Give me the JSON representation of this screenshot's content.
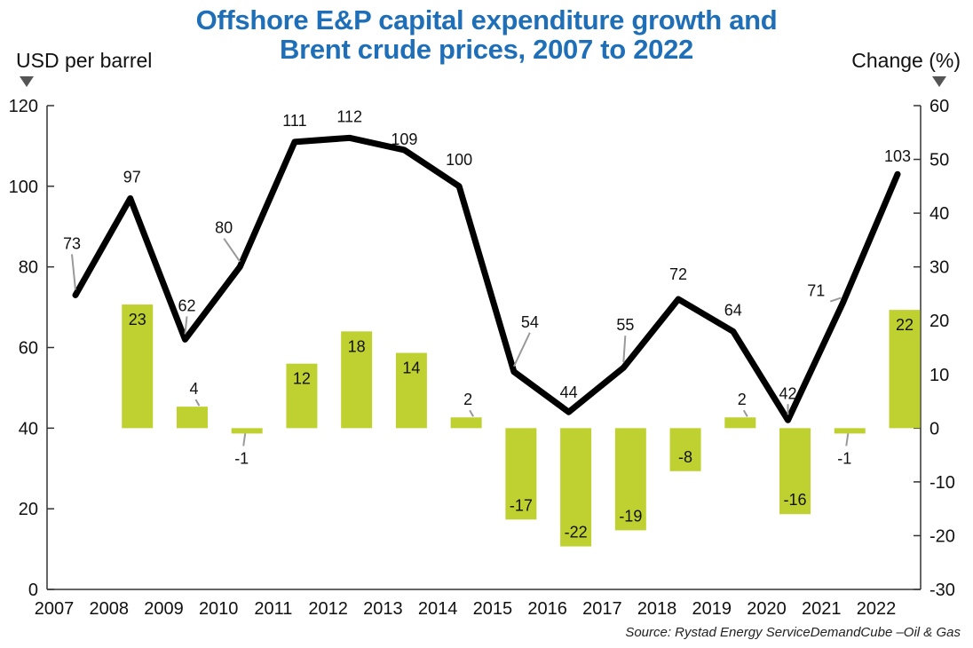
{
  "title_line1": "Offshore E&P capital expenditure growth and",
  "title_line2": "Brent crude prices, 2007 to 2022",
  "left_axis_title": "USD per barrel",
  "right_axis_title": "Change (%)",
  "source": "Source: Rystad Energy ServiceDemandCube –Oil & Gas",
  "colors": {
    "title": "#1f6fb8",
    "bar": "#bfd131",
    "line": "#000000",
    "axis": "#333333"
  },
  "chart_data": {
    "type": "bar+line",
    "categories": [
      "2007",
      "2008",
      "2009",
      "2010",
      "2011",
      "2012",
      "2013",
      "2014",
      "2015",
      "2016",
      "2017",
      "2018",
      "2019",
      "2020",
      "2021",
      "2022"
    ],
    "series": [
      {
        "name": "Brent crude price",
        "axis": "left",
        "type": "line",
        "values": [
          73,
          97,
          62,
          80,
          111,
          112,
          109,
          100,
          54,
          44,
          55,
          72,
          64,
          42,
          71,
          103
        ]
      },
      {
        "name": "Offshore E&P capex growth",
        "axis": "right",
        "type": "bar",
        "values": [
          null,
          23,
          4,
          -1,
          12,
          18,
          14,
          2,
          -17,
          -22,
          -19,
          -8,
          2,
          -16,
          -1,
          22
        ]
      }
    ],
    "left_axis": {
      "label": "USD per barrel",
      "range": [
        0,
        120
      ],
      "ticks": [
        0,
        20,
        40,
        60,
        80,
        100,
        120
      ]
    },
    "right_axis": {
      "label": "Change (%)",
      "range": [
        -30,
        60
      ],
      "ticks": [
        -30,
        -20,
        -10,
        0,
        10,
        20,
        30,
        40,
        50,
        60
      ]
    }
  }
}
